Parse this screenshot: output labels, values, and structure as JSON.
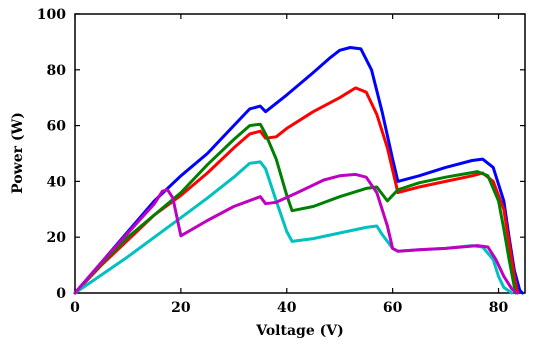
{
  "chart_data": {
    "type": "line",
    "title": "",
    "xlabel": "Voltage (V)",
    "ylabel": "Power (W)",
    "xlim": [
      0,
      85
    ],
    "ylim": [
      0,
      100
    ],
    "x_ticks": [
      0,
      20,
      40,
      60,
      80
    ],
    "y_ticks": [
      0,
      20,
      40,
      60,
      80,
      100
    ],
    "grid": false,
    "series": [
      {
        "color": "#0000ff",
        "x": [
          0,
          5,
          10,
          15,
          20,
          25,
          30,
          33,
          35,
          36,
          40,
          45,
          48,
          50,
          52,
          54,
          56,
          58,
          60,
          61,
          65,
          70,
          75,
          77,
          79,
          81,
          82,
          83,
          84,
          84.5
        ],
        "y": [
          0,
          11,
          22,
          33,
          42,
          50,
          60,
          66,
          67,
          65,
          71,
          79,
          84,
          87,
          88,
          87.5,
          80,
          65,
          48,
          40,
          42,
          45,
          47.5,
          48,
          45,
          33,
          20,
          8,
          1,
          0
        ]
      },
      {
        "color": "#ff0000",
        "x": [
          0,
          5,
          10,
          15,
          20,
          25,
          30,
          33,
          35,
          36,
          38,
          40,
          45,
          50,
          53,
          55,
          57,
          59,
          61,
          65,
          70,
          75,
          77,
          79,
          81,
          82,
          83,
          83.6
        ],
        "y": [
          0,
          10,
          19,
          28,
          35,
          43,
          52,
          57,
          58,
          55.5,
          56,
          59,
          65,
          70,
          73.5,
          72,
          64,
          52,
          36,
          38,
          40,
          42,
          43,
          40,
          30,
          18,
          6,
          0
        ]
      },
      {
        "color": "#008000",
        "x": [
          0,
          5,
          10,
          15,
          20,
          25,
          30,
          33,
          35,
          36,
          38,
          40,
          41,
          45,
          50,
          55,
          57,
          59,
          61,
          65,
          70,
          76,
          78,
          80,
          81,
          82,
          83.2
        ],
        "y": [
          0,
          10.5,
          20,
          28,
          36,
          46,
          55,
          60,
          60.5,
          57,
          48,
          35,
          29.5,
          31,
          34.5,
          37.5,
          38,
          33,
          37,
          39.5,
          41.5,
          43.5,
          42,
          33,
          23,
          12,
          0
        ]
      },
      {
        "color": "#00c0c0",
        "x": [
          0,
          5,
          10,
          15,
          20,
          25,
          30,
          33,
          35,
          36,
          38,
          40,
          41,
          45,
          50,
          55,
          57,
          58,
          60,
          61,
          65,
          70,
          75,
          77,
          79,
          80,
          81,
          82.5
        ],
        "y": [
          0,
          6.5,
          13,
          20,
          27,
          34,
          41.5,
          46.5,
          47,
          44.5,
          33,
          22,
          18.5,
          19.5,
          21.5,
          23.5,
          24,
          21,
          16,
          15,
          15.5,
          16,
          17,
          16.5,
          12,
          6,
          2,
          0
        ]
      },
      {
        "color": "#c000c0",
        "x": [
          0,
          5,
          10,
          15,
          16.5,
          17.5,
          18.5,
          19.5,
          20,
          25,
          30,
          35,
          36,
          38,
          42,
          47,
          50,
          53,
          55,
          57,
          59,
          60,
          61,
          65,
          70,
          76,
          78,
          79.5,
          81,
          82.5,
          83.5
        ],
        "y": [
          0,
          11,
          21.5,
          32,
          36.5,
          37,
          34,
          25,
          20.5,
          26,
          31,
          34.5,
          32,
          32.5,
          36,
          40.5,
          42,
          42.5,
          41.5,
          36,
          24,
          16,
          15,
          15.5,
          16,
          17,
          16.5,
          12,
          6,
          1.5,
          0
        ]
      }
    ]
  }
}
